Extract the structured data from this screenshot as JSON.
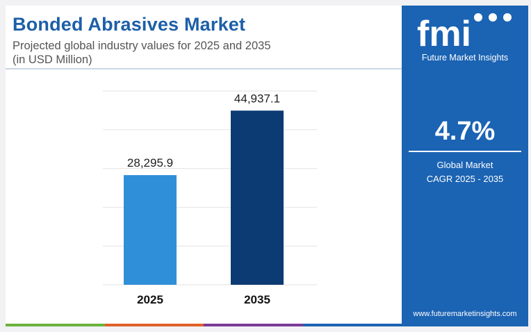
{
  "header": {
    "title": "Bonded Abrasives Market",
    "subtitle": "Projected global industry values for 2025 and 2035",
    "subtitle_unit": "(in USD Million)"
  },
  "colors": {
    "title": "#1d5fa8",
    "bar_2025": "#2f8fd8",
    "bar_2035": "#0c3a73",
    "panel": "#1b63b3",
    "bottom_bar": [
      "#6cb33f",
      "#e0602b",
      "#7a3c98",
      "#1b63b3"
    ]
  },
  "chart_data": {
    "type": "bar",
    "categories": [
      "2025",
      "2035"
    ],
    "values": [
      28295.9,
      44937.1
    ],
    "value_labels": [
      "28,295.9",
      "44,937.1"
    ],
    "ylim": [
      0,
      50000
    ],
    "grid": true,
    "xlabel": "",
    "ylabel": ""
  },
  "sidebar": {
    "brand_text": "fmi",
    "brand_name": "Future Market Insights",
    "cagr_value": "4.7%",
    "cagr_label_line1": "Global Market",
    "cagr_label_line2": "CAGR 2025 - 2035",
    "website": "www.futuremarketinsights.com"
  }
}
